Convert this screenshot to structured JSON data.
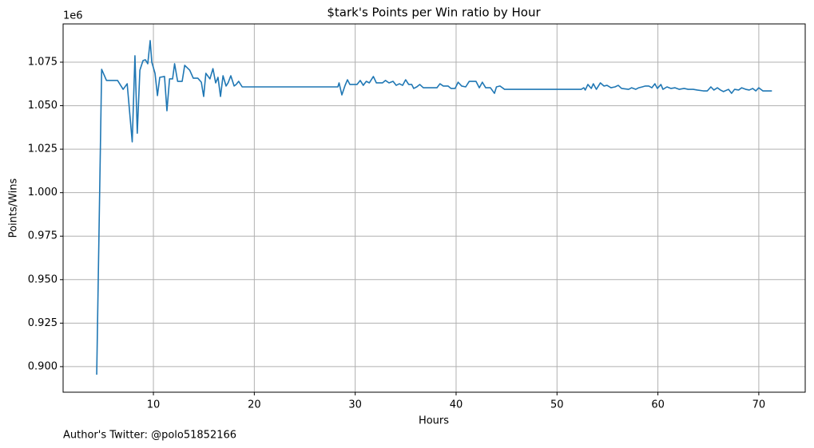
{
  "chart_data": {
    "type": "line",
    "title": "$tark's Points per Win ratio by Hour",
    "x_label": "Hours",
    "y_label": "Points/Wins",
    "y_offset_label": "1e6",
    "annotation": "Author's Twitter: @polo51852166",
    "grid": true,
    "xlim": [
      1.05,
      74.6
    ],
    "ylim": [
      0.8853,
      1.097
    ],
    "xticks": [
      10,
      20,
      30,
      40,
      50,
      60,
      70
    ],
    "yticks": [
      {
        "value": 0.9,
        "label": "0.900"
      },
      0.925,
      {
        "value": 0.95,
        "label": "0.950"
      },
      0.975,
      {
        "value": 1.0,
        "label": "1.000"
      },
      1.025,
      {
        "value": 1.05,
        "label": "1.050"
      },
      1.075
    ],
    "x": [
      4.38,
      4.87,
      5.35,
      6.45,
      7.0,
      7.4,
      7.9,
      8.17,
      8.4,
      8.66,
      8.97,
      9.2,
      9.44,
      9.68,
      9.84,
      10.16,
      10.4,
      10.63,
      11.1,
      11.34,
      11.6,
      11.9,
      12.1,
      12.4,
      12.85,
      13.1,
      13.6,
      13.95,
      14.4,
      14.75,
      14.98,
      15.2,
      15.6,
      15.9,
      16.17,
      16.4,
      16.65,
      16.9,
      17.2,
      17.4,
      17.67,
      18.0,
      18.2,
      18.45,
      18.8,
      28.28,
      28.4,
      28.68,
      29.0,
      29.23,
      29.47,
      30.18,
      30.5,
      30.8,
      31.1,
      31.4,
      31.8,
      32.1,
      32.7,
      33.0,
      33.35,
      33.75,
      34.06,
      34.38,
      34.7,
      35.0,
      35.3,
      35.6,
      35.8,
      36.1,
      36.4,
      36.75,
      38.1,
      38.4,
      38.73,
      39.2,
      39.5,
      39.9,
      40.2,
      40.55,
      40.95,
      41.3,
      41.97,
      42.3,
      42.6,
      42.93,
      43.4,
      43.8,
      44.0,
      44.35,
      44.8,
      52.4,
      52.66,
      52.8,
      53.06,
      53.4,
      53.6,
      53.9,
      54.3,
      54.65,
      54.96,
      55.35,
      55.75,
      56.07,
      56.4,
      57.1,
      57.4,
      57.8,
      58.1,
      58.45,
      58.76,
      59.1,
      59.4,
      59.7,
      59.95,
      60.3,
      60.5,
      60.9,
      61.3,
      61.7,
      62.1,
      62.6,
      63.0,
      63.5,
      63.9,
      64.5,
      64.9,
      65.25,
      65.55,
      65.9,
      66.2,
      66.5,
      67.0,
      67.3,
      67.6,
      68.0,
      68.3,
      68.7,
      69.05,
      69.4,
      69.7,
      70.0,
      70.4,
      71.3
    ],
    "series": [
      {
        "color": "#1f77b4",
        "values": [
          0.8954,
          1.0709,
          1.0645,
          1.0645,
          1.0594,
          1.0626,
          1.0292,
          1.0787,
          1.0342,
          1.0704,
          1.0759,
          1.0764,
          1.0741,
          1.0874,
          1.075,
          1.0686,
          1.0558,
          1.0663,
          1.0668,
          1.0471,
          1.0654,
          1.0654,
          1.0741,
          1.064,
          1.064,
          1.0732,
          1.0704,
          1.0658,
          1.0658,
          1.0635,
          1.0553,
          1.0686,
          1.0654,
          1.0713,
          1.0631,
          1.0663,
          1.0553,
          1.0672,
          1.0613,
          1.0631,
          1.0672,
          1.0613,
          1.0622,
          1.064,
          1.0608,
          1.0608,
          1.0631,
          1.0562,
          1.0617,
          1.0649,
          1.0622,
          1.0622,
          1.0645,
          1.0617,
          1.064,
          1.0631,
          1.0668,
          1.0631,
          1.0631,
          1.0645,
          1.0631,
          1.064,
          1.0617,
          1.0626,
          1.0617,
          1.0649,
          1.0622,
          1.0622,
          1.0599,
          1.0608,
          1.0622,
          1.0603,
          1.0603,
          1.0626,
          1.0613,
          1.0613,
          1.0599,
          1.0599,
          1.0635,
          1.0613,
          1.0608,
          1.064,
          1.064,
          1.0603,
          1.0635,
          1.0603,
          1.0603,
          1.0571,
          1.0608,
          1.0613,
          1.0594,
          1.0594,
          1.0603,
          1.059,
          1.0622,
          1.0599,
          1.0626,
          1.0594,
          1.0631,
          1.0613,
          1.0617,
          1.0603,
          1.0608,
          1.0617,
          1.0599,
          1.0594,
          1.0603,
          1.0594,
          1.0603,
          1.0608,
          1.0613,
          1.0613,
          1.0603,
          1.0626,
          1.0599,
          1.0622,
          1.0594,
          1.0608,
          1.0599,
          1.0603,
          1.0594,
          1.0599,
          1.0594,
          1.0594,
          1.059,
          1.0585,
          1.0585,
          1.0608,
          1.059,
          1.0603,
          1.059,
          1.0581,
          1.0594,
          1.0571,
          1.0594,
          1.059,
          1.0603,
          1.0594,
          1.059,
          1.0599,
          1.0585,
          1.0603,
          1.0585,
          1.0585
        ]
      }
    ]
  }
}
